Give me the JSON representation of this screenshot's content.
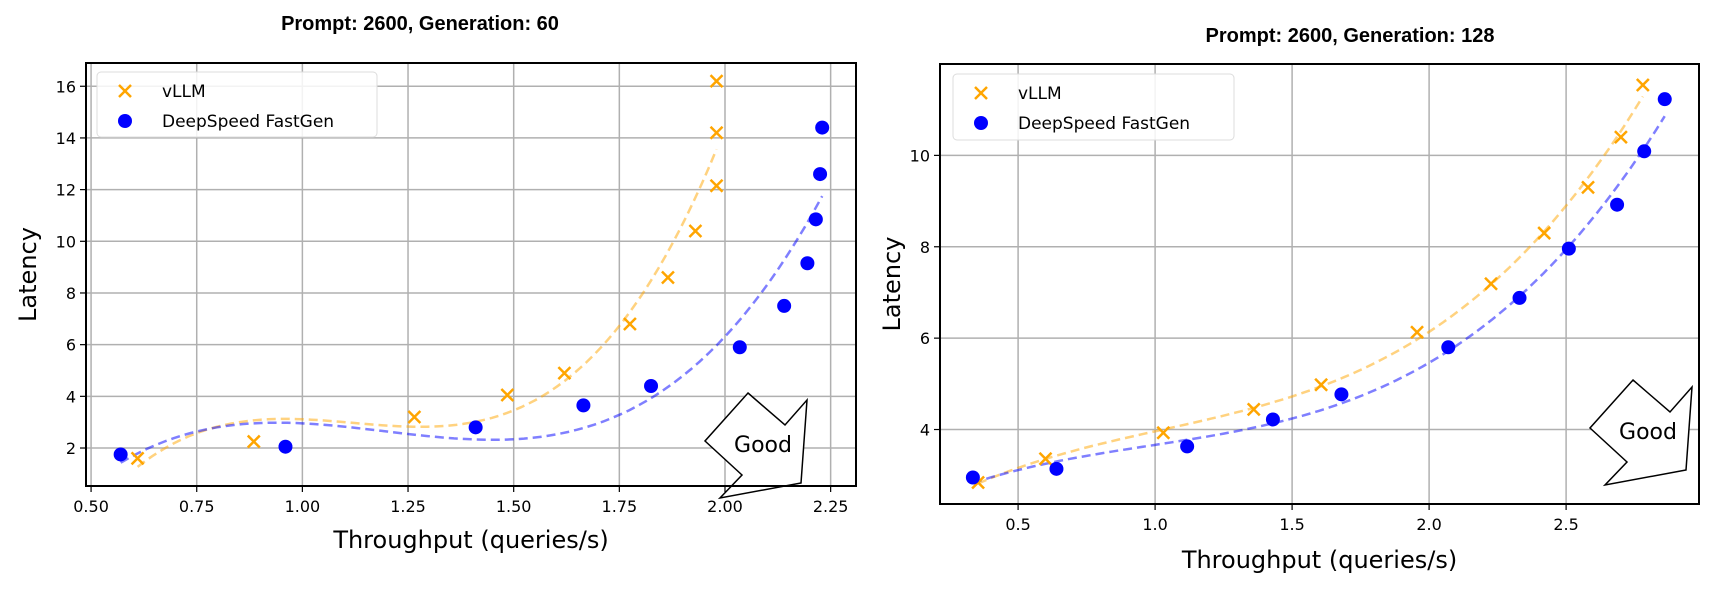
{
  "chart_data": [
    {
      "type": "scatter",
      "title": "Prompt: 2600, Generation: 60",
      "xlabel": "Throughput (queries/s)",
      "ylabel": "Latency",
      "xlim": [
        0.488,
        2.31
      ],
      "ylim": [
        0.53,
        16.9
      ],
      "xticks": [
        0.5,
        0.75,
        1.0,
        1.25,
        1.5,
        1.75,
        2.0,
        2.25
      ],
      "xtick_labels": [
        "0.50",
        "0.75",
        "1.00",
        "1.25",
        "1.50",
        "1.75",
        "2.00",
        "2.25"
      ],
      "yticks": [
        2,
        4,
        6,
        8,
        10,
        12,
        14,
        16
      ],
      "ytick_labels": [
        "2",
        "4",
        "6",
        "8",
        "10",
        "12",
        "14",
        "16"
      ],
      "grid": true,
      "legend_position": "top-left",
      "annotation": "Good",
      "series": [
        {
          "name": "vLLM",
          "marker": "x",
          "color": "#FFA500",
          "fit": "cubic dashed",
          "x": [
            0.61,
            0.885,
            1.265,
            1.485,
            1.62,
            1.775,
            1.865,
            1.93,
            1.98,
            1.98,
            1.98
          ],
          "y": [
            1.6,
            2.25,
            3.2,
            4.05,
            4.9,
            6.8,
            8.6,
            10.4,
            12.15,
            14.2,
            16.2
          ]
        },
        {
          "name": "DeepSpeed FastGen",
          "marker": "o",
          "color": "#0000FF",
          "fit": "cubic dashed",
          "x": [
            0.57,
            0.96,
            1.41,
            1.665,
            1.825,
            2.035,
            2.14,
            2.195,
            2.215,
            2.225,
            2.23
          ],
          "y": [
            1.75,
            2.05,
            2.8,
            3.65,
            4.4,
            5.9,
            7.5,
            9.15,
            10.85,
            12.6,
            14.4
          ]
        }
      ]
    },
    {
      "type": "scatter",
      "title": "Prompt: 2600, Generation: 128",
      "xlabel": "Throughput (queries/s)",
      "ylabel": "Latency",
      "xlim": [
        0.215,
        2.985
      ],
      "ylim": [
        2.37,
        12.0
      ],
      "xticks": [
        0.5,
        1.0,
        1.5,
        2.0,
        2.5
      ],
      "xtick_labels": [
        "0.5",
        "1.0",
        "1.5",
        "2.0",
        "2.5"
      ],
      "yticks": [
        4,
        6,
        8,
        10
      ],
      "ytick_labels": [
        "4",
        "6",
        "8",
        "10"
      ],
      "grid": true,
      "legend_position": "top-left",
      "annotation": "Good",
      "series": [
        {
          "name": "vLLM",
          "marker": "x",
          "color": "#FFA500",
          "fit": "cubic dashed",
          "x": [
            0.354,
            0.6,
            1.03,
            1.36,
            1.606,
            1.956,
            2.226,
            2.42,
            2.58,
            2.7,
            2.78
          ],
          "y": [
            2.84,
            3.36,
            3.93,
            4.44,
            4.98,
            6.13,
            7.19,
            8.3,
            9.3,
            10.4,
            11.54
          ]
        },
        {
          "name": "DeepSpeed FastGen",
          "marker": "o",
          "color": "#0000FF",
          "fit": "cubic dashed",
          "x": [
            0.335,
            0.64,
            1.117,
            1.43,
            1.68,
            2.07,
            2.33,
            2.51,
            2.686,
            2.785,
            2.86
          ],
          "y": [
            2.95,
            3.14,
            3.63,
            4.22,
            4.77,
            5.8,
            6.88,
            7.96,
            8.92,
            10.09,
            11.23
          ]
        }
      ]
    }
  ]
}
